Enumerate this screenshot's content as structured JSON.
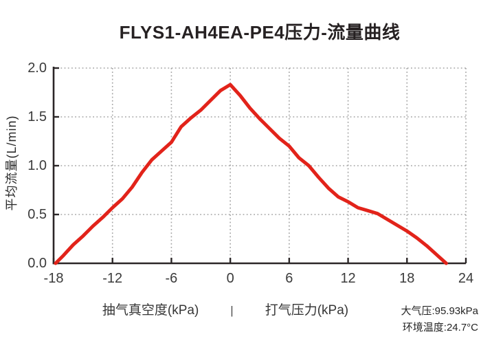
{
  "chart_data": {
    "type": "line",
    "title": "FLYS1-AH4EA-PE4压力-流量曲线",
    "ylabel": "平均流量(L/min)",
    "xlabel_left": "抽气真空度(kPa)",
    "xlabel_separator": "|",
    "xlabel_right": "打气压力(kPa)",
    "xlim": [
      -18,
      24
    ],
    "ylim": [
      0,
      2
    ],
    "xticks": [
      -18,
      -12,
      -6,
      0,
      6,
      12,
      18,
      24
    ],
    "ytick_labels": [
      "0.0",
      "0.5",
      "1.0",
      "1.5",
      "2.0"
    ],
    "grid": true,
    "legend_position": "none",
    "line_color": "#e2231a",
    "axis_color": "#2b2627",
    "grid_color": "#a3a3a3",
    "series": [
      {
        "name": "压力-流量曲线",
        "x": [
          -17.8,
          -17,
          -16,
          -15,
          -14,
          -13,
          -12,
          -11,
          -10,
          -9,
          -8,
          -7,
          -6,
          -5,
          -4,
          -3,
          -2,
          -1,
          0,
          1,
          2,
          3,
          4,
          5,
          6,
          7,
          8,
          9,
          10,
          11,
          12,
          13,
          14,
          15,
          16,
          17,
          18,
          19,
          20,
          21,
          22
        ],
        "y": [
          0.0,
          0.08,
          0.19,
          0.28,
          0.38,
          0.47,
          0.57,
          0.66,
          0.78,
          0.93,
          1.06,
          1.15,
          1.24,
          1.4,
          1.49,
          1.57,
          1.67,
          1.77,
          1.83,
          1.72,
          1.59,
          1.48,
          1.38,
          1.28,
          1.2,
          1.08,
          1.0,
          0.88,
          0.77,
          0.68,
          0.63,
          0.57,
          0.54,
          0.51,
          0.45,
          0.39,
          0.33,
          0.26,
          0.18,
          0.09,
          0.0
        ]
      }
    ]
  },
  "annotations": {
    "atmospheric_pressure": "大气压:95.93kPa",
    "ambient_temperature": "环境温度:24.7°C"
  }
}
